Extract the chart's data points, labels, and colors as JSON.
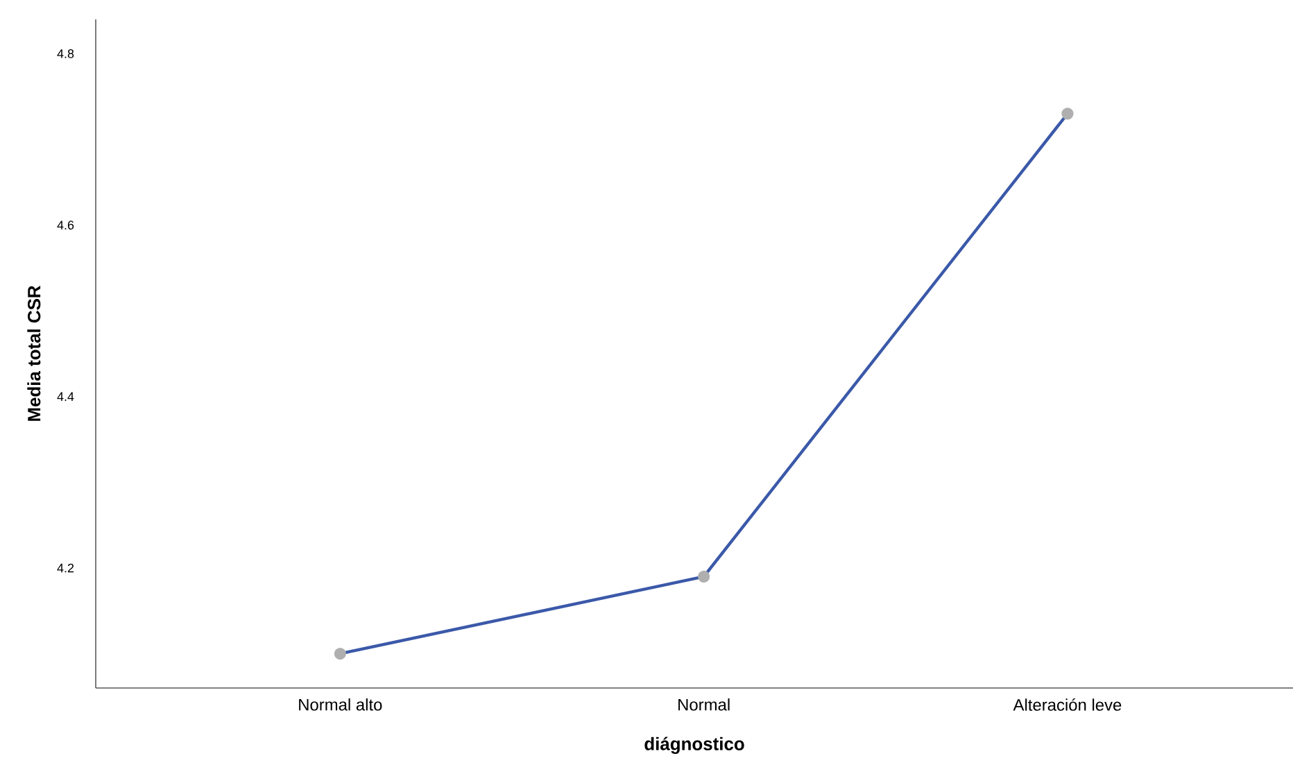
{
  "chart_data": {
    "type": "line",
    "xlabel": "diágnostico",
    "ylabel": "Media  total CSR",
    "categories": [
      "Normal alto",
      "Normal",
      "Alteración leve"
    ],
    "series": [
      {
        "color": "#3b59a9",
        "values": [
          4.1,
          4.19,
          4.73
        ]
      }
    ],
    "ylim": [
      4.06,
      4.84
    ],
    "yticks": [
      4.2,
      4.4,
      4.6,
      4.8
    ],
    "marker": "circle",
    "line_style": "solid"
  }
}
